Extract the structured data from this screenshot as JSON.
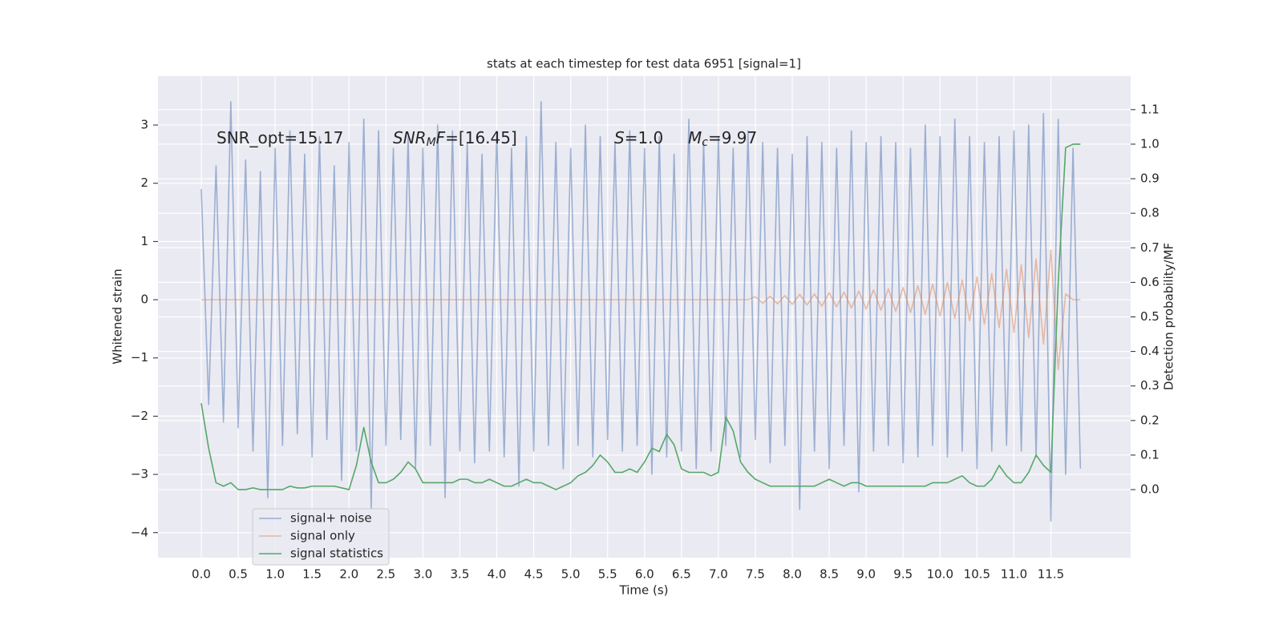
{
  "chart_data": {
    "type": "line",
    "title": "stats at each timestep for test data 6951 [signal=1]",
    "xlabel": "Time (s)",
    "ylabel": "Whitened strain",
    "y2label": "Detection probability/MF",
    "xlim": [
      -0.586,
      12.58
    ],
    "ylim": [
      -4.43,
      3.84
    ],
    "y2lim": [
      -0.197,
      1.197
    ],
    "xticks": [
      {
        "value": 0,
        "label": "0.0"
      },
      0.5,
      {
        "value": 1,
        "label": "1.0"
      },
      1.5,
      {
        "value": 2,
        "label": "2.0"
      },
      2.5,
      {
        "value": 3,
        "label": "3.0"
      },
      3.5,
      {
        "value": 4,
        "label": "4.0"
      },
      4.5,
      {
        "value": 5,
        "label": "5.0"
      },
      5.5,
      {
        "value": 6,
        "label": "6.0"
      },
      6.5,
      {
        "value": 7,
        "label": "7.0"
      },
      7.5,
      {
        "value": 8,
        "label": "8.0"
      },
      8.5,
      {
        "value": 9,
        "label": "9.0"
      },
      9.5,
      {
        "value": 10,
        "label": "10.0"
      },
      10.5,
      {
        "value": 11,
        "label": "11.0"
      },
      11.5
    ],
    "yticks": [
      {
        "value": -4,
        "label": "−4"
      },
      {
        "value": -3,
        "label": "−3"
      },
      {
        "value": -2,
        "label": "−2"
      },
      {
        "value": -1,
        "label": "−1"
      },
      0,
      1,
      2,
      3
    ],
    "y2ticks": [
      {
        "value": 0,
        "label": "0.0"
      },
      0.1,
      0.2,
      0.3,
      0.4,
      0.5,
      0.6,
      0.7,
      0.8,
      0.9,
      {
        "value": 1,
        "label": "1.0"
      },
      1.1
    ],
    "grid": true,
    "legend": "lower left",
    "annotations": [
      {
        "segments": [
          {
            "text": "SNR_opt=15.17",
            "style": "normal"
          }
        ]
      },
      {
        "segments": [
          {
            "text": "SNR",
            "style": "italic"
          },
          {
            "text": "M",
            "style": "italic-sub"
          },
          {
            "text": "F",
            "style": "italic"
          },
          {
            "text": "=[16.45]",
            "style": "normal"
          }
        ]
      },
      {
        "segments": [
          {
            "text": "S",
            "style": "italic"
          },
          {
            "text": "=1.0",
            "style": "normal"
          }
        ]
      },
      {
        "segments": [
          {
            "text": "M",
            "style": "italic"
          },
          {
            "text": "c",
            "style": "italic-sub"
          },
          {
            "text": "=9.97",
            "style": "normal"
          }
        ]
      }
    ],
    "x": [
      0,
      0.1,
      0.2,
      0.3,
      0.4,
      0.5,
      0.6,
      0.7,
      0.8,
      0.9,
      1,
      1.1,
      1.2,
      1.3,
      1.4,
      1.5,
      1.6,
      1.7,
      1.8,
      1.9,
      2,
      2.1,
      2.2,
      2.3,
      2.4,
      2.5,
      2.6,
      2.7,
      2.8,
      2.9,
      3,
      3.1,
      3.2,
      3.3,
      3.4,
      3.5,
      3.6,
      3.7,
      3.8,
      3.9,
      4,
      4.1,
      4.2,
      4.3,
      4.4,
      4.5,
      4.6,
      4.7,
      4.8,
      4.9,
      5,
      5.1,
      5.2,
      5.3,
      5.4,
      5.5,
      5.6,
      5.7,
      5.8,
      5.9,
      6,
      6.1,
      6.2,
      6.3,
      6.4,
      6.5,
      6.6,
      6.7,
      6.8,
      6.9,
      7,
      7.1,
      7.2,
      7.3,
      7.4,
      7.5,
      7.6,
      7.7,
      7.8,
      7.9,
      8,
      8.1,
      8.2,
      8.3,
      8.4,
      8.5,
      8.6,
      8.7,
      8.8,
      8.9,
      9,
      9.1,
      9.2,
      9.3,
      9.4,
      9.5,
      9.6,
      9.7,
      9.8,
      9.9,
      10,
      10.1,
      10.2,
      10.3,
      10.4,
      10.5,
      10.6,
      10.7,
      10.8,
      10.9,
      11,
      11.1,
      11.2,
      11.3,
      11.4,
      11.5,
      11.6,
      11.7,
      11.8,
      11.9
    ],
    "series": [
      {
        "name": "signal+ noise",
        "color": "#4c72b0",
        "opacity": 0.5,
        "axis": "y",
        "values": [
          1.9,
          -1.8,
          2.3,
          -2.1,
          3.4,
          -2.2,
          2.4,
          -2.6,
          2.2,
          -3.4,
          2.6,
          -2.5,
          2.9,
          -2.3,
          2.5,
          -2.7,
          2.8,
          -2.4,
          2.3,
          -3.1,
          2.7,
          -2.6,
          3.1,
          -3.6,
          2.9,
          -2.5,
          2.6,
          -2.4,
          2.8,
          -2.9,
          2.6,
          -2.5,
          3.0,
          -3.4,
          2.9,
          -2.6,
          2.7,
          -2.8,
          2.5,
          -2.6,
          2.9,
          -2.7,
          2.6,
          -3.2,
          2.8,
          -2.6,
          3.4,
          -2.5,
          2.7,
          -2.9,
          2.6,
          -2.5,
          3.0,
          -2.7,
          2.8,
          -2.4,
          2.7,
          -2.6,
          2.9,
          -2.5,
          2.6,
          -3.0,
          2.8,
          -2.7,
          2.5,
          -2.6,
          3.1,
          -2.9,
          2.7,
          -2.6,
          2.8,
          -2.5,
          2.6,
          -2.7,
          2.9,
          -2.4,
          2.7,
          -2.8,
          2.6,
          -2.5,
          2.5,
          -3.6,
          2.8,
          -2.6,
          2.7,
          -2.9,
          2.6,
          -2.5,
          2.9,
          -3.3,
          2.7,
          -2.6,
          2.8,
          -2.5,
          2.7,
          -2.8,
          2.6,
          -2.7,
          3.0,
          -2.5,
          2.8,
          -2.7,
          3.1,
          -2.6,
          2.8,
          -2.9,
          2.7,
          -2.6,
          2.8,
          -2.5,
          2.9,
          -2.6,
          3.0,
          -2.7,
          3.2,
          -3.8,
          3.1,
          -3.0,
          2.6,
          -2.9
        ]
      },
      {
        "name": "signal only",
        "color": "#dd8452",
        "opacity": 0.5,
        "axis": "y",
        "values": [
          0,
          0,
          0,
          0,
          0,
          0,
          0,
          0,
          0,
          0,
          0,
          0,
          0,
          0,
          0,
          0,
          0,
          0,
          0,
          0,
          0,
          0,
          0,
          0,
          0,
          0,
          0,
          0,
          0,
          0,
          0,
          0,
          0,
          0,
          0,
          0,
          0,
          0,
          0,
          0,
          0,
          0,
          0,
          0,
          0,
          0,
          0,
          0,
          0,
          0,
          0,
          0,
          0,
          0,
          0,
          0,
          0,
          0,
          0,
          0,
          0,
          0,
          0,
          0,
          0,
          0,
          0,
          0,
          0,
          0,
          0,
          0,
          0,
          0,
          0,
          0.05,
          -0.06,
          0.06,
          -0.07,
          0.07,
          -0.08,
          0.09,
          -0.09,
          0.1,
          -0.11,
          0.12,
          -0.12,
          0.13,
          -0.14,
          0.15,
          -0.16,
          0.17,
          -0.18,
          0.19,
          -0.2,
          0.21,
          -0.22,
          0.24,
          -0.25,
          0.27,
          -0.28,
          0.3,
          -0.32,
          0.34,
          -0.36,
          0.39,
          -0.42,
          0.45,
          -0.48,
          0.52,
          -0.56,
          0.6,
          -0.65,
          0.7,
          -0.76,
          0.85,
          -1.2,
          0.1,
          0,
          0
        ]
      },
      {
        "name": "signal statistics",
        "color": "#55a868",
        "opacity": 1,
        "axis": "y2",
        "values": [
          0.25,
          0.12,
          0.02,
          0.01,
          0.02,
          0.0,
          0.0,
          0.005,
          0.0,
          0.0,
          0.0,
          0.0,
          0.01,
          0.005,
          0.005,
          0.01,
          0.01,
          0.01,
          0.01,
          0.005,
          0.0,
          0.07,
          0.18,
          0.08,
          0.02,
          0.02,
          0.03,
          0.05,
          0.08,
          0.06,
          0.02,
          0.02,
          0.02,
          0.02,
          0.02,
          0.03,
          0.03,
          0.02,
          0.02,
          0.03,
          0.02,
          0.01,
          0.01,
          0.02,
          0.03,
          0.02,
          0.02,
          0.01,
          0.0,
          0.01,
          0.02,
          0.04,
          0.05,
          0.07,
          0.1,
          0.08,
          0.05,
          0.05,
          0.06,
          0.05,
          0.08,
          0.12,
          0.11,
          0.16,
          0.13,
          0.06,
          0.05,
          0.05,
          0.05,
          0.04,
          0.05,
          0.21,
          0.17,
          0.08,
          0.05,
          0.03,
          0.02,
          0.01,
          0.01,
          0.01,
          0.01,
          0.01,
          0.01,
          0.01,
          0.02,
          0.03,
          0.02,
          0.01,
          0.02,
          0.02,
          0.01,
          0.01,
          0.01,
          0.01,
          0.01,
          0.01,
          0.01,
          0.01,
          0.01,
          0.02,
          0.02,
          0.02,
          0.03,
          0.04,
          0.02,
          0.01,
          0.01,
          0.03,
          0.07,
          0.04,
          0.02,
          0.02,
          0.05,
          0.1,
          0.07,
          0.05,
          0.6,
          0.99,
          1.0,
          1.0
        ]
      }
    ]
  }
}
